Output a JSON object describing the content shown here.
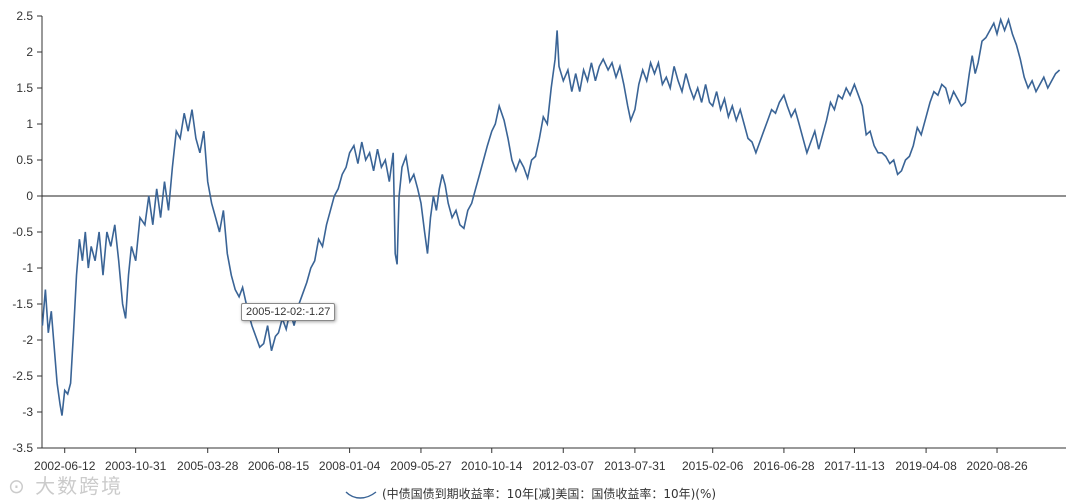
{
  "chart_data": {
    "type": "line",
    "title": "",
    "xlabel": "",
    "ylabel": "",
    "ylim": [
      -3.5,
      2.5
    ],
    "yticks": [
      2.5,
      2,
      1.5,
      1,
      0.5,
      0,
      -0.5,
      -1,
      -1.5,
      -2,
      -2.5,
      -3,
      -3.5
    ],
    "x_range": [
      "2002-01-01",
      "2021-12-31"
    ],
    "xtick_labels": [
      "2002-06-12",
      "2003-10-31",
      "2005-03-28",
      "2006-08-15",
      "2008-01-04",
      "2009-05-27",
      "2010-10-14",
      "2012-03-07",
      "2013-07-31",
      "2015-02-06",
      "2016-06-28",
      "2017-11-13",
      "2019-04-08",
      "2020-08-26"
    ],
    "zero_line": true,
    "grid": false,
    "legend_position": "bottom-center",
    "line_color": "#3a6496",
    "series": [
      {
        "name": "(中债国债到期收益率：10年[减]美国：国债收益率：10年)(%)",
        "points": [
          [
            "2002-01-04",
            -1.8
          ],
          [
            "2002-01-25",
            -1.3
          ],
          [
            "2002-02-15",
            -1.9
          ],
          [
            "2002-03-08",
            -1.6
          ],
          [
            "2002-03-29",
            -2.1
          ],
          [
            "2002-04-19",
            -2.6
          ],
          [
            "2002-05-10",
            -2.9
          ],
          [
            "2002-05-24",
            -3.05
          ],
          [
            "2002-06-12",
            -2.7
          ],
          [
            "2002-07-03",
            -2.75
          ],
          [
            "2002-07-24",
            -2.6
          ],
          [
            "2002-08-14",
            -1.9
          ],
          [
            "2002-09-04",
            -1.1
          ],
          [
            "2002-09-25",
            -0.6
          ],
          [
            "2002-10-16",
            -0.9
          ],
          [
            "2002-11-06",
            -0.5
          ],
          [
            "2002-11-27",
            -1.0
          ],
          [
            "2002-12-18",
            -0.7
          ],
          [
            "2003-01-15",
            -0.9
          ],
          [
            "2003-02-12",
            -0.5
          ],
          [
            "2003-03-12",
            -1.1
          ],
          [
            "2003-04-09",
            -0.5
          ],
          [
            "2003-05-07",
            -0.7
          ],
          [
            "2003-06-04",
            -0.4
          ],
          [
            "2003-07-02",
            -0.9
          ],
          [
            "2003-07-30",
            -1.5
          ],
          [
            "2003-08-20",
            -1.7
          ],
          [
            "2003-09-10",
            -1.1
          ],
          [
            "2003-10-01",
            -0.7
          ],
          [
            "2003-10-31",
            -0.9
          ],
          [
            "2003-12-01",
            -0.3
          ],
          [
            "2004-01-05",
            -0.4
          ],
          [
            "2004-02-02",
            0.0
          ],
          [
            "2004-03-01",
            -0.4
          ],
          [
            "2004-03-29",
            0.1
          ],
          [
            "2004-04-26",
            -0.3
          ],
          [
            "2004-05-24",
            0.2
          ],
          [
            "2004-06-21",
            -0.2
          ],
          [
            "2004-07-19",
            0.4
          ],
          [
            "2004-08-16",
            0.9
          ],
          [
            "2004-09-13",
            0.8
          ],
          [
            "2004-10-11",
            1.15
          ],
          [
            "2004-11-08",
            0.9
          ],
          [
            "2004-12-06",
            1.2
          ],
          [
            "2005-01-03",
            0.8
          ],
          [
            "2005-01-31",
            0.6
          ],
          [
            "2005-02-28",
            0.9
          ],
          [
            "2005-03-28",
            0.2
          ],
          [
            "2005-04-25",
            -0.1
          ],
          [
            "2005-05-23",
            -0.3
          ],
          [
            "2005-06-20",
            -0.5
          ],
          [
            "2005-07-18",
            -0.2
          ],
          [
            "2005-08-15",
            -0.8
          ],
          [
            "2005-09-12",
            -1.1
          ],
          [
            "2005-10-10",
            -1.3
          ],
          [
            "2005-11-07",
            -1.4
          ],
          [
            "2005-12-02",
            -1.27
          ],
          [
            "2006-01-09",
            -1.6
          ],
          [
            "2006-02-06",
            -1.8
          ],
          [
            "2006-03-06",
            -1.95
          ],
          [
            "2006-04-03",
            -2.1
          ],
          [
            "2006-05-01",
            -2.05
          ],
          [
            "2006-05-29",
            -1.8
          ],
          [
            "2006-06-26",
            -2.15
          ],
          [
            "2006-07-24",
            -1.95
          ],
          [
            "2006-08-15",
            -1.9
          ],
          [
            "2006-09-11",
            -1.7
          ],
          [
            "2006-10-09",
            -1.85
          ],
          [
            "2006-11-06",
            -1.6
          ],
          [
            "2006-12-04",
            -1.8
          ],
          [
            "2007-01-08",
            -1.5
          ],
          [
            "2007-02-05",
            -1.35
          ],
          [
            "2007-03-05",
            -1.2
          ],
          [
            "2007-04-02",
            -1.0
          ],
          [
            "2007-04-30",
            -0.9
          ],
          [
            "2007-05-28",
            -0.6
          ],
          [
            "2007-06-25",
            -0.7
          ],
          [
            "2007-07-23",
            -0.4
          ],
          [
            "2007-08-20",
            -0.2
          ],
          [
            "2007-09-17",
            0.0
          ],
          [
            "2007-10-15",
            0.1
          ],
          [
            "2007-11-12",
            0.3
          ],
          [
            "2007-12-10",
            0.4
          ],
          [
            "2008-01-04",
            0.6
          ],
          [
            "2008-02-04",
            0.7
          ],
          [
            "2008-03-03",
            0.45
          ],
          [
            "2008-03-31",
            0.75
          ],
          [
            "2008-04-28",
            0.5
          ],
          [
            "2008-05-26",
            0.6
          ],
          [
            "2008-06-23",
            0.35
          ],
          [
            "2008-07-21",
            0.65
          ],
          [
            "2008-08-18",
            0.4
          ],
          [
            "2008-09-15",
            0.5
          ],
          [
            "2008-10-13",
            0.2
          ],
          [
            "2008-11-10",
            0.6
          ],
          [
            "2008-11-24",
            -0.8
          ],
          [
            "2008-12-08",
            -0.95
          ],
          [
            "2008-12-22",
            0.0
          ],
          [
            "2009-01-12",
            0.4
          ],
          [
            "2009-02-09",
            0.55
          ],
          [
            "2009-03-09",
            0.2
          ],
          [
            "2009-04-06",
            0.3
          ],
          [
            "2009-05-04",
            0.1
          ],
          [
            "2009-05-27",
            -0.1
          ],
          [
            "2009-06-22",
            -0.5
          ],
          [
            "2009-07-13",
            -0.8
          ],
          [
            "2009-08-03",
            -0.3
          ],
          [
            "2009-08-24",
            0.0
          ],
          [
            "2009-09-14",
            -0.2
          ],
          [
            "2009-10-05",
            0.1
          ],
          [
            "2009-10-26",
            0.3
          ],
          [
            "2009-11-16",
            0.15
          ],
          [
            "2009-12-07",
            -0.1
          ],
          [
            "2010-01-04",
            -0.3
          ],
          [
            "2010-02-01",
            -0.2
          ],
          [
            "2010-03-01",
            -0.4
          ],
          [
            "2010-03-29",
            -0.45
          ],
          [
            "2010-04-26",
            -0.2
          ],
          [
            "2010-05-24",
            -0.1
          ],
          [
            "2010-06-21",
            0.1
          ],
          [
            "2010-07-19",
            0.3
          ],
          [
            "2010-08-16",
            0.5
          ],
          [
            "2010-09-13",
            0.7
          ],
          [
            "2010-10-14",
            0.9
          ],
          [
            "2010-11-08",
            1.0
          ],
          [
            "2010-12-06",
            1.25
          ],
          [
            "2011-01-10",
            1.05
          ],
          [
            "2011-02-07",
            0.8
          ],
          [
            "2011-03-07",
            0.5
          ],
          [
            "2011-04-04",
            0.35
          ],
          [
            "2011-05-02",
            0.5
          ],
          [
            "2011-05-30",
            0.4
          ],
          [
            "2011-06-27",
            0.25
          ],
          [
            "2011-07-25",
            0.5
          ],
          [
            "2011-08-22",
            0.55
          ],
          [
            "2011-09-19",
            0.8
          ],
          [
            "2011-10-17",
            1.1
          ],
          [
            "2011-11-14",
            1.0
          ],
          [
            "2011-12-12",
            1.5
          ],
          [
            "2012-01-09",
            1.9
          ],
          [
            "2012-01-23",
            2.3
          ],
          [
            "2012-02-06",
            1.8
          ],
          [
            "2012-03-07",
            1.6
          ],
          [
            "2012-04-09",
            1.75
          ],
          [
            "2012-05-07",
            1.45
          ],
          [
            "2012-06-04",
            1.7
          ],
          [
            "2012-07-02",
            1.45
          ],
          [
            "2012-07-30",
            1.75
          ],
          [
            "2012-08-27",
            1.6
          ],
          [
            "2012-09-24",
            1.85
          ],
          [
            "2012-10-22",
            1.6
          ],
          [
            "2012-11-19",
            1.8
          ],
          [
            "2012-12-17",
            1.9
          ],
          [
            "2013-01-21",
            1.75
          ],
          [
            "2013-02-18",
            1.85
          ],
          [
            "2013-03-18",
            1.65
          ],
          [
            "2013-04-15",
            1.8
          ],
          [
            "2013-05-13",
            1.55
          ],
          [
            "2013-06-10",
            1.25
          ],
          [
            "2013-07-01",
            1.05
          ],
          [
            "2013-07-31",
            1.2
          ],
          [
            "2013-08-28",
            1.55
          ],
          [
            "2013-09-25",
            1.75
          ],
          [
            "2013-10-23",
            1.6
          ],
          [
            "2013-11-20",
            1.85
          ],
          [
            "2013-12-18",
            1.7
          ],
          [
            "2014-01-15",
            1.85
          ],
          [
            "2014-02-12",
            1.55
          ],
          [
            "2014-03-12",
            1.65
          ],
          [
            "2014-04-09",
            1.5
          ],
          [
            "2014-05-07",
            1.8
          ],
          [
            "2014-06-04",
            1.6
          ],
          [
            "2014-07-02",
            1.45
          ],
          [
            "2014-07-30",
            1.7
          ],
          [
            "2014-08-27",
            1.5
          ],
          [
            "2014-09-24",
            1.35
          ],
          [
            "2014-10-22",
            1.5
          ],
          [
            "2014-11-19",
            1.3
          ],
          [
            "2014-12-17",
            1.55
          ],
          [
            "2015-01-14",
            1.3
          ],
          [
            "2015-02-06",
            1.25
          ],
          [
            "2015-03-06",
            1.45
          ],
          [
            "2015-04-03",
            1.2
          ],
          [
            "2015-05-01",
            1.35
          ],
          [
            "2015-05-29",
            1.1
          ],
          [
            "2015-06-26",
            1.25
          ],
          [
            "2015-07-24",
            1.05
          ],
          [
            "2015-08-21",
            1.2
          ],
          [
            "2015-09-18",
            1.0
          ],
          [
            "2015-10-16",
            0.8
          ],
          [
            "2015-11-13",
            0.75
          ],
          [
            "2015-12-11",
            0.6
          ],
          [
            "2016-01-08",
            0.75
          ],
          [
            "2016-02-05",
            0.9
          ],
          [
            "2016-03-04",
            1.05
          ],
          [
            "2016-04-01",
            1.2
          ],
          [
            "2016-04-29",
            1.15
          ],
          [
            "2016-05-27",
            1.3
          ],
          [
            "2016-06-28",
            1.4
          ],
          [
            "2016-07-22",
            1.25
          ],
          [
            "2016-08-19",
            1.1
          ],
          [
            "2016-09-16",
            1.2
          ],
          [
            "2016-10-14",
            1.0
          ],
          [
            "2016-11-11",
            0.8
          ],
          [
            "2016-12-09",
            0.6
          ],
          [
            "2017-01-06",
            0.75
          ],
          [
            "2017-02-03",
            0.9
          ],
          [
            "2017-03-03",
            0.65
          ],
          [
            "2017-03-31",
            0.85
          ],
          [
            "2017-04-28",
            1.05
          ],
          [
            "2017-05-26",
            1.3
          ],
          [
            "2017-06-23",
            1.2
          ],
          [
            "2017-07-21",
            1.4
          ],
          [
            "2017-08-18",
            1.35
          ],
          [
            "2017-09-15",
            1.5
          ],
          [
            "2017-10-13",
            1.4
          ],
          [
            "2017-11-13",
            1.55
          ],
          [
            "2017-12-11",
            1.4
          ],
          [
            "2018-01-08",
            1.25
          ],
          [
            "2018-02-05",
            0.85
          ],
          [
            "2018-03-05",
            0.9
          ],
          [
            "2018-04-02",
            0.7
          ],
          [
            "2018-04-30",
            0.6
          ],
          [
            "2018-05-28",
            0.6
          ],
          [
            "2018-06-25",
            0.55
          ],
          [
            "2018-07-23",
            0.45
          ],
          [
            "2018-08-20",
            0.5
          ],
          [
            "2018-09-17",
            0.3
          ],
          [
            "2018-10-15",
            0.35
          ],
          [
            "2018-11-12",
            0.5
          ],
          [
            "2018-12-10",
            0.55
          ],
          [
            "2019-01-07",
            0.7
          ],
          [
            "2019-02-04",
            0.95
          ],
          [
            "2019-03-04",
            0.85
          ],
          [
            "2019-04-08",
            1.1
          ],
          [
            "2019-05-06",
            1.3
          ],
          [
            "2019-06-03",
            1.45
          ],
          [
            "2019-07-01",
            1.4
          ],
          [
            "2019-07-29",
            1.55
          ],
          [
            "2019-08-26",
            1.5
          ],
          [
            "2019-09-23",
            1.3
          ],
          [
            "2019-10-21",
            1.45
          ],
          [
            "2019-11-18",
            1.35
          ],
          [
            "2019-12-16",
            1.25
          ],
          [
            "2020-01-13",
            1.3
          ],
          [
            "2020-02-10",
            1.7
          ],
          [
            "2020-03-02",
            1.95
          ],
          [
            "2020-03-23",
            1.7
          ],
          [
            "2020-04-13",
            1.85
          ],
          [
            "2020-05-11",
            2.15
          ],
          [
            "2020-06-08",
            2.2
          ],
          [
            "2020-07-06",
            2.3
          ],
          [
            "2020-08-03",
            2.4
          ],
          [
            "2020-08-26",
            2.25
          ],
          [
            "2020-09-21",
            2.45
          ],
          [
            "2020-10-19",
            2.3
          ],
          [
            "2020-11-16",
            2.45
          ],
          [
            "2020-12-14",
            2.25
          ],
          [
            "2021-01-11",
            2.1
          ],
          [
            "2021-02-08",
            1.9
          ],
          [
            "2021-03-08",
            1.65
          ],
          [
            "2021-04-05",
            1.5
          ],
          [
            "2021-05-03",
            1.6
          ],
          [
            "2021-05-31",
            1.45
          ],
          [
            "2021-06-28",
            1.55
          ],
          [
            "2021-07-26",
            1.65
          ],
          [
            "2021-08-23",
            1.5
          ],
          [
            "2021-09-20",
            1.6
          ],
          [
            "2021-10-18",
            1.7
          ],
          [
            "2021-11-15",
            1.75
          ]
        ]
      }
    ]
  },
  "tooltip": {
    "date": "2005-12-02",
    "value": -1.27,
    "text": "2005-12-02:-1.27"
  },
  "legend": {
    "label": "(中债国债到期收益率：10年[减]美国：国债收益率：10年)(%)"
  },
  "watermark": {
    "text": "大数跨境"
  }
}
